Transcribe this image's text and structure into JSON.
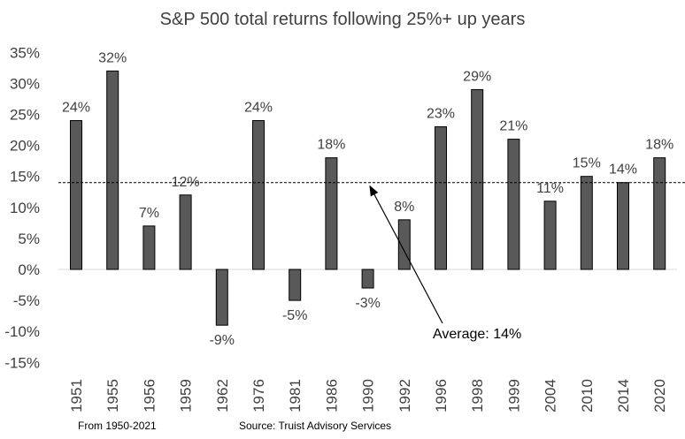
{
  "chart_data": {
    "type": "bar",
    "title": "S&P 500 total returns following 25%+ up years",
    "categories": [
      "1951",
      "1955",
      "1956",
      "1959",
      "1962",
      "1976",
      "1981",
      "1986",
      "1990",
      "1992",
      "1996",
      "1998",
      "1999",
      "2004",
      "2010",
      "2014",
      "2020"
    ],
    "values": [
      24,
      32,
      7,
      12,
      -9,
      24,
      -5,
      18,
      -3,
      8,
      23,
      29,
      21,
      11,
      15,
      14,
      18
    ],
    "data_labels": [
      "24%",
      "32%",
      "7%",
      "12%",
      "-9%",
      "24%",
      "-5%",
      "18%",
      "-3%",
      "8%",
      "23%",
      "29%",
      "21%",
      "11%",
      "15%",
      "14%",
      "18%"
    ],
    "yticks": [
      -15,
      -10,
      -5,
      0,
      5,
      10,
      15,
      20,
      25,
      30,
      35
    ],
    "ytick_labels": [
      "-15%",
      "-10%",
      "-5%",
      "0%",
      "5%",
      "10%",
      "15%",
      "20%",
      "25%",
      "30%",
      "35%"
    ],
    "ylim": [
      -15,
      35
    ],
    "xlabel": "",
    "ylabel": "",
    "grid": false,
    "bar_color": "#595959",
    "average": {
      "value": 14,
      "label": "Average: 14%"
    }
  },
  "footer": {
    "range": "From 1950-2021",
    "source": "Source: Truist Advisory Services"
  }
}
